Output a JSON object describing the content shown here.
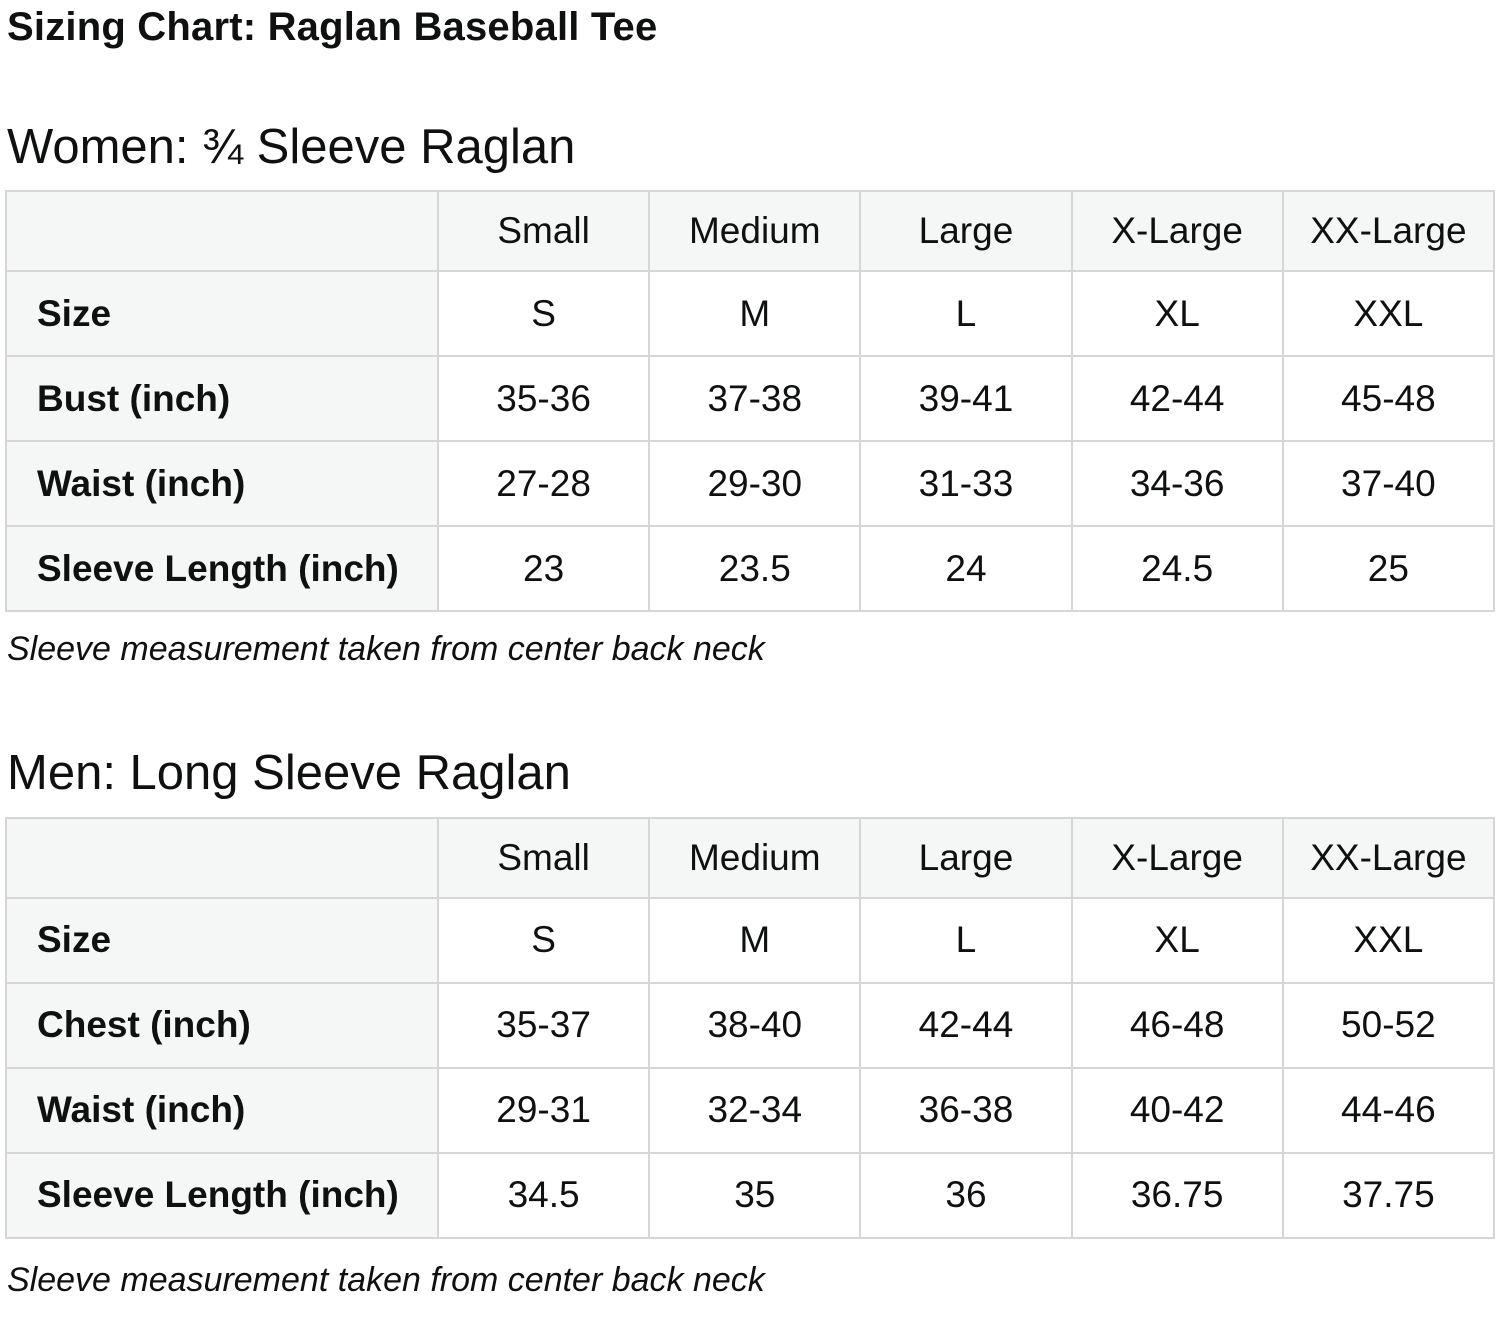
{
  "page": {
    "title": "Sizing Chart: Raglan Baseball Tee"
  },
  "sections": [
    {
      "heading": "Women: ¾ Sleeve Raglan",
      "table": {
        "corner_label": "",
        "columns": [
          "Small",
          "Medium",
          "Large",
          "X-Large",
          "XX-Large"
        ],
        "rows": [
          {
            "label": "Size",
            "values": [
              "S",
              "M",
              "L",
              "XL",
              "XXL"
            ]
          },
          {
            "label": "Bust (inch)",
            "values": [
              "35-36",
              "37-38",
              "39-41",
              "42-44",
              "45-48"
            ]
          },
          {
            "label": "Waist (inch)",
            "values": [
              "27-28",
              "29-30",
              "31-33",
              "34-36",
              "37-40"
            ]
          },
          {
            "label": "Sleeve Length (inch)",
            "values": [
              "23",
              "23.5",
              "24",
              "24.5",
              "25"
            ]
          }
        ]
      },
      "note": "Sleeve measurement taken from center back neck"
    },
    {
      "heading": "Men: Long Sleeve Raglan",
      "table": {
        "corner_label": "",
        "columns": [
          "Small",
          "Medium",
          "Large",
          "X-Large",
          "XX-Large"
        ],
        "rows": [
          {
            "label": "Size",
            "values": [
              "S",
              "M",
              "L",
              "XL",
              "XXL"
            ]
          },
          {
            "label": "Chest (inch)",
            "values": [
              "35-37",
              "38-40",
              "42-44",
              "46-48",
              "50-52"
            ]
          },
          {
            "label": "Waist (inch)",
            "values": [
              "29-31",
              "32-34",
              "36-38",
              "40-42",
              "44-46"
            ]
          },
          {
            "label": "Sleeve Length (inch)",
            "values": [
              "34.5",
              "35",
              "36",
              "36.75",
              "37.75"
            ]
          }
        ]
      },
      "note": "Sleeve measurement taken from center back neck"
    }
  ],
  "colors": {
    "page_bg": "#ffffff",
    "text": "#0f1111",
    "table_header_bg": "#f5f6f6",
    "table_border": "#d6d6d6"
  }
}
